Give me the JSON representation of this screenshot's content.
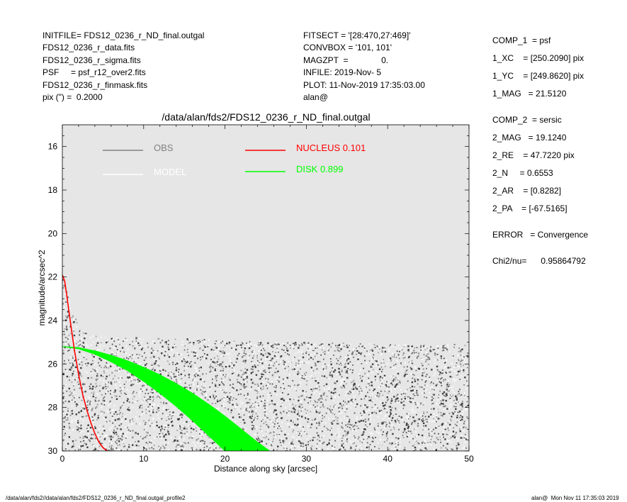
{
  "header": {
    "left": [
      "INITFILE= FDS12_0236_r_ND_final.outgal",
      "FDS12_0236_r_data.fits",
      "FDS12_0236_r_sigma.fits",
      "PSF     = psf_r12_over2.fits",
      "FDS12_0236_r_finmask.fits",
      "pix (\") =  0.2000"
    ],
    "middle": [
      "FITSECT = '[28:470,27:469]'",
      "CONVBOX = '101, 101'",
      "MAGZPT  =              0.",
      "INFILE: 2019-Nov- 5",
      "PLOT: 11-Nov-2019 17:35:03.00",
      "alan@"
    ]
  },
  "components": {
    "comp1": [
      "COMP_1  = psf",
      "1_XC    = [250.2090] pix",
      "1_YC    = [249.8620] pix",
      "1_MAG   = 21.5120"
    ],
    "comp2": [
      "COMP_2  = sersic",
      "2_MAG   = 19.1240",
      "2_RE    = 47.7220 pix",
      "2_N     = 0.6553",
      "2_AR    = [0.8282]",
      "2_PA    = [-67.5165]"
    ],
    "error": "ERROR   = Convergence",
    "chi2": "Chi2/nu=      0.95864792"
  },
  "footer": {
    "left": "/data/alan/fds2//data/alan/fds2/FDS12_0236_r_ND_final.outgal_profile2",
    "right": "alan@  Mon Nov 11 17:35:03 2019"
  },
  "colors": {
    "panel_bg": "#e6e6e6",
    "obs": "#808080",
    "model": "#ffffff",
    "nucleus": "#ff0000",
    "disk": "#00ff00",
    "data_dark": "#404040"
  },
  "chart_data": {
    "type": "scatter",
    "title": "/data/alan/fds2/FDS12_0236_r_ND_final.outgal",
    "xlabel": "Distance along sky [arcsec]",
    "ylabel": "magnitude/arcsec^2",
    "xlim": [
      0,
      50
    ],
    "ylim": [
      30,
      15
    ],
    "y_inverted": true,
    "xticks": [
      0,
      10,
      20,
      30,
      40,
      50
    ],
    "yticks": [
      16,
      18,
      20,
      22,
      24,
      26,
      28,
      30
    ],
    "grid": false,
    "legend": [
      {
        "name": "OBS",
        "color": "#808080",
        "style": "line"
      },
      {
        "name": "MODEL",
        "color": "#ffffff",
        "style": "line"
      },
      {
        "name": "NUCLEUS",
        "value": "0.101",
        "color": "#ff0000",
        "style": "line"
      },
      {
        "name": "DISK",
        "value": "0.899",
        "color": "#00ff00",
        "style": "line"
      }
    ],
    "series": [
      {
        "name": "NUCLEUS",
        "points": [
          [
            0.0,
            21.9
          ],
          [
            0.3,
            22.2
          ],
          [
            0.6,
            23.0
          ],
          [
            1.0,
            24.1
          ],
          [
            1.5,
            25.4
          ],
          [
            2.0,
            26.5
          ],
          [
            2.5,
            27.4
          ],
          [
            3.0,
            28.1
          ],
          [
            3.5,
            28.7
          ],
          [
            4.0,
            29.2
          ],
          [
            4.5,
            29.6
          ],
          [
            5.0,
            29.85
          ],
          [
            5.5,
            30.0
          ]
        ]
      },
      {
        "name": "DISK",
        "band_x": [
          0,
          2,
          4,
          6,
          8,
          10,
          12,
          14,
          16,
          18,
          20,
          22,
          24,
          25.5
        ],
        "band_upper": [
          25.2,
          25.25,
          25.4,
          25.6,
          25.85,
          26.15,
          26.5,
          26.9,
          27.35,
          27.85,
          28.4,
          29.0,
          29.6,
          30.0
        ],
        "band_lower": [
          25.2,
          25.3,
          25.55,
          25.9,
          26.3,
          26.8,
          27.35,
          27.95,
          28.6,
          29.3,
          30.0,
          30.0,
          30.0,
          30.0
        ]
      },
      {
        "name": "OBS",
        "description_free": true,
        "upper_envelope_x": [
          0,
          1,
          2,
          3,
          4,
          5,
          10,
          20,
          30,
          40,
          50
        ],
        "upper_envelope_y": [
          22.0,
          23.2,
          24.3,
          24.6,
          24.7,
          24.75,
          24.8,
          24.9,
          25.0,
          25.1,
          25.1
        ]
      }
    ]
  }
}
